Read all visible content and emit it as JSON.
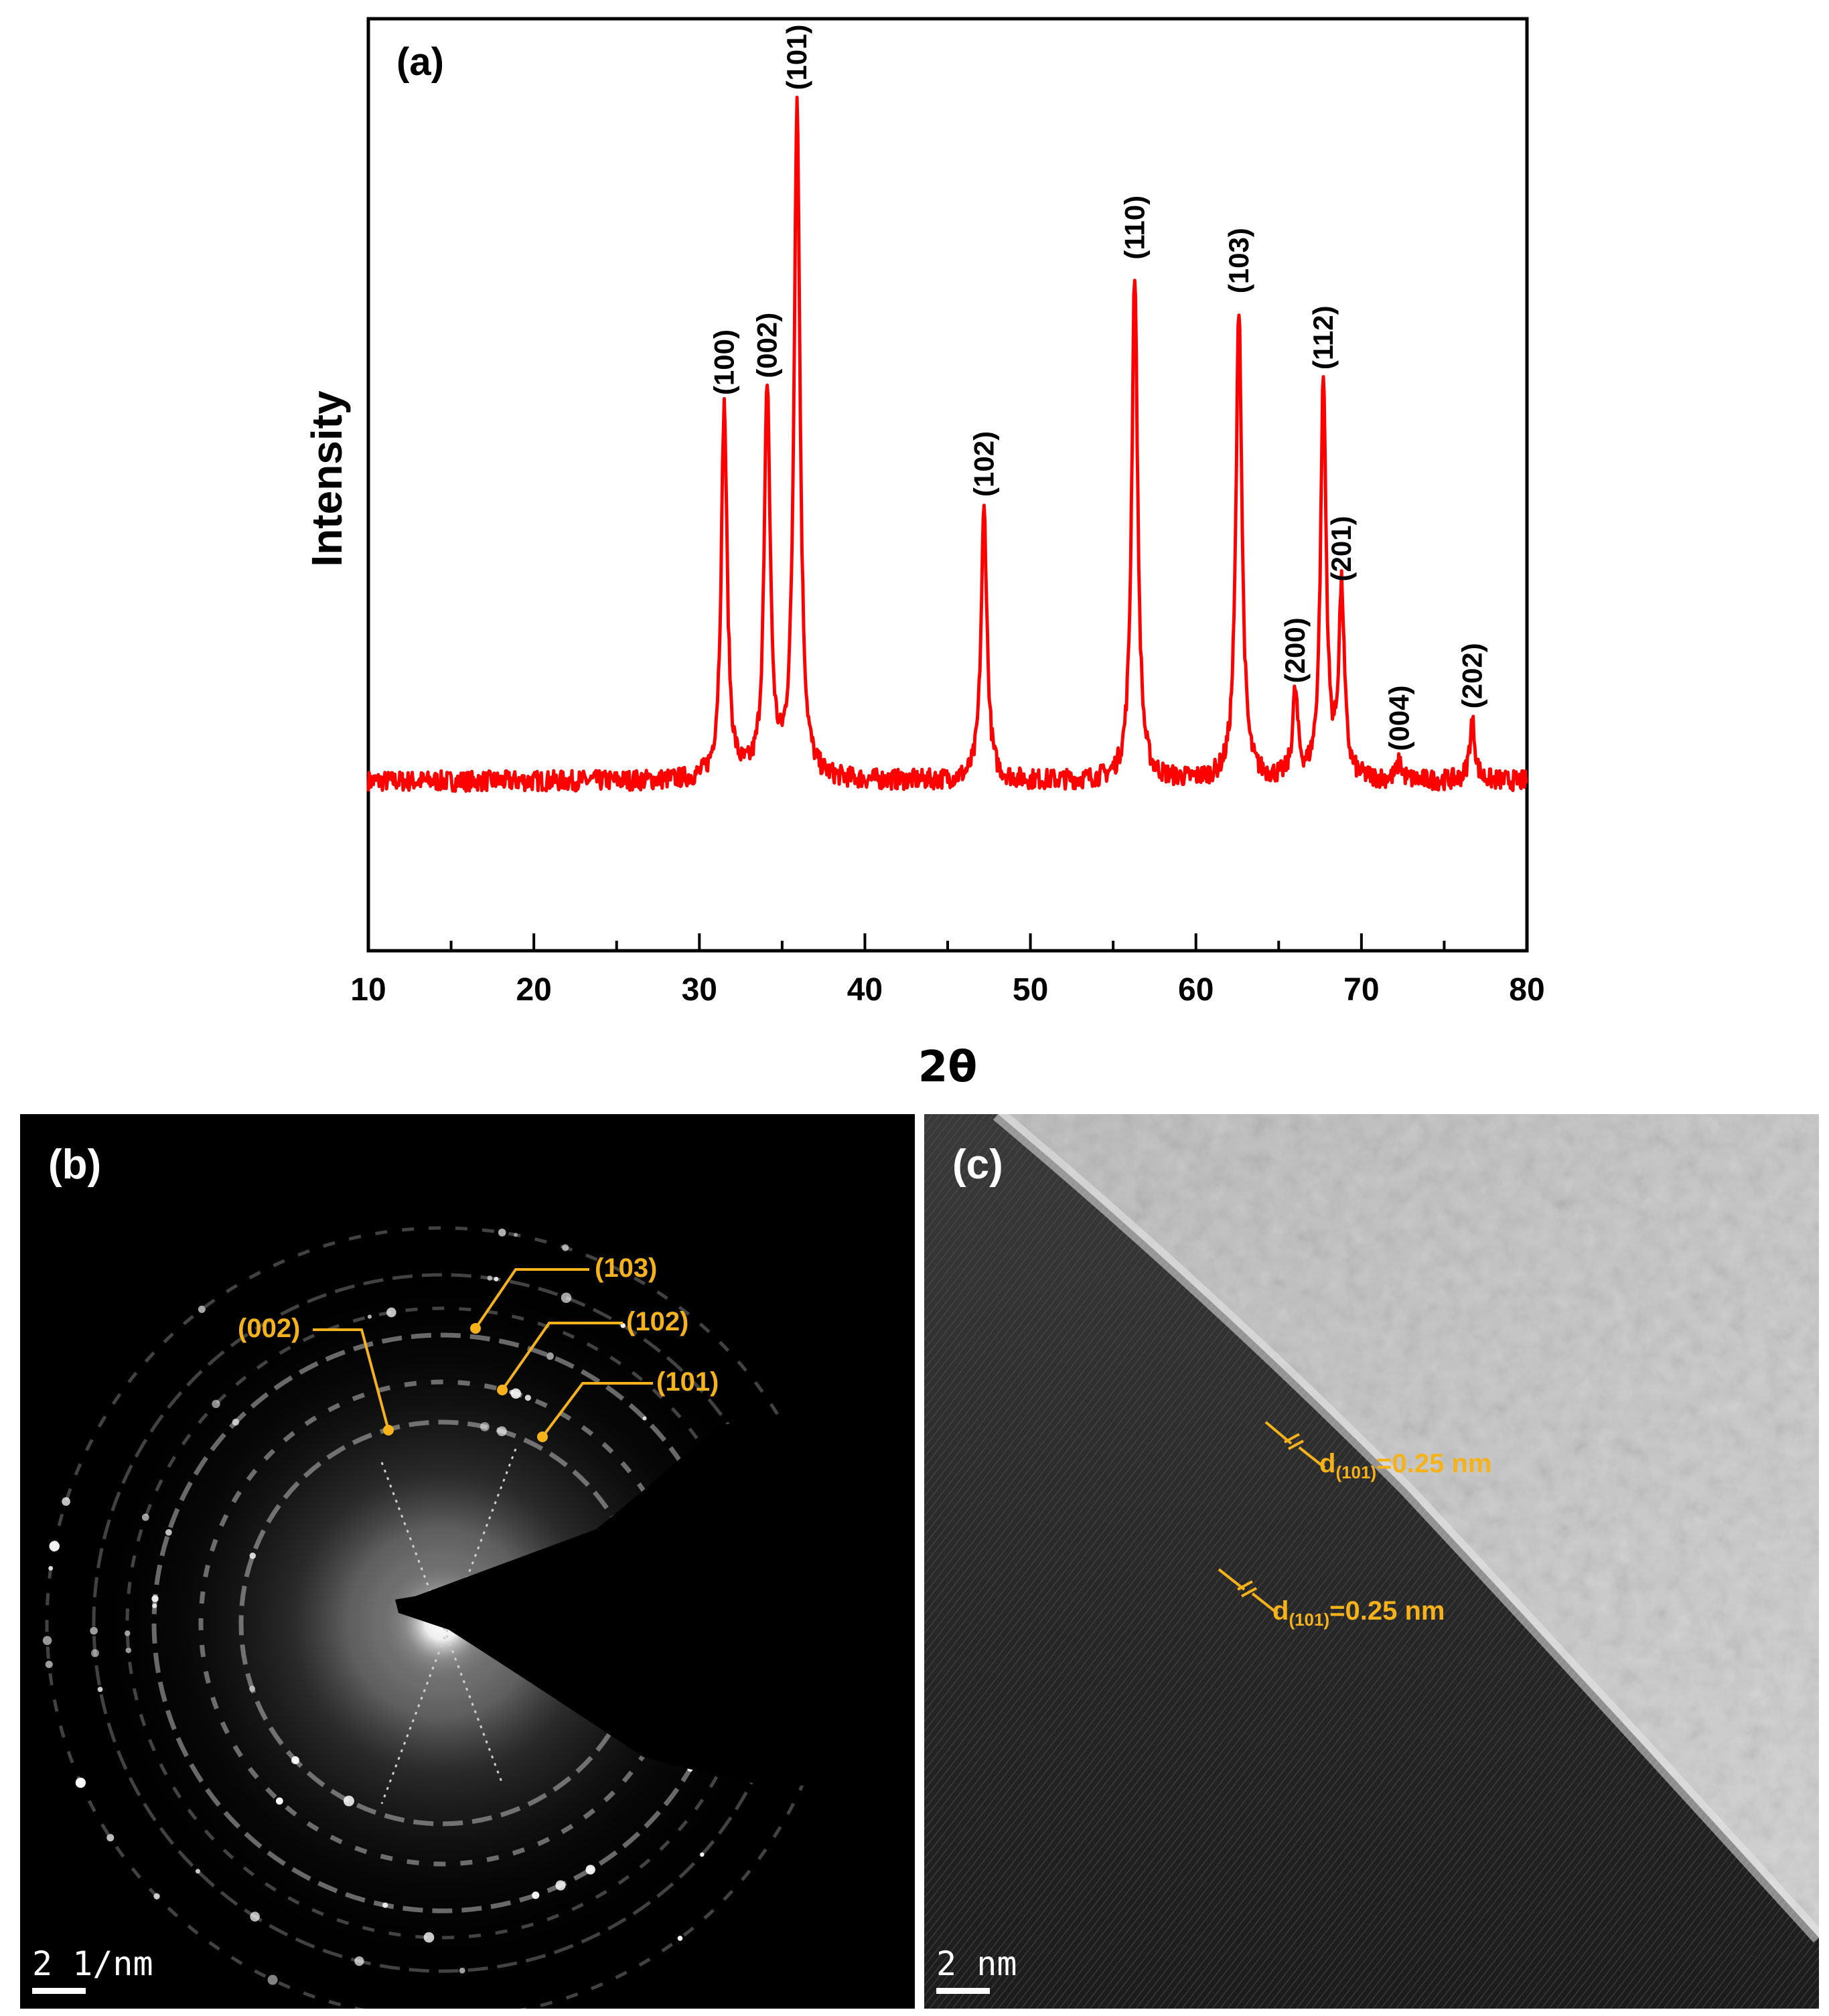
{
  "chart_data": {
    "type": "line",
    "panel_label": "(a)",
    "xlabel": "2θ",
    "ylabel": "Intensity",
    "xlim": [
      10,
      80
    ],
    "ylim": [
      0,
      110
    ],
    "xticks": [
      "10",
      "20",
      "30",
      "40",
      "50",
      "60",
      "70",
      "80"
    ],
    "color": "#ff0000",
    "baseline": 20,
    "peaks": [
      {
        "label": "(100)",
        "x": 31.5,
        "y": 64,
        "width": 0.32
      },
      {
        "label": "(002)",
        "x": 34.1,
        "y": 66,
        "width": 0.32
      },
      {
        "label": "(101)",
        "x": 35.9,
        "y": 100,
        "width": 0.32
      },
      {
        "label": "(102)",
        "x": 47.2,
        "y": 52,
        "width": 0.32
      },
      {
        "label": "(110)",
        "x": 56.3,
        "y": 80,
        "width": 0.32
      },
      {
        "label": "(103)",
        "x": 62.6,
        "y": 76,
        "width": 0.32
      },
      {
        "label": "(200)",
        "x": 66.0,
        "y": 30,
        "width": 0.28
      },
      {
        "label": "(112)",
        "x": 67.7,
        "y": 67,
        "width": 0.3
      },
      {
        "label": "(201)",
        "x": 68.8,
        "y": 42,
        "width": 0.3
      },
      {
        "label": "(004)",
        "x": 72.3,
        "y": 22,
        "width": 0.3
      },
      {
        "label": "(202)",
        "x": 76.7,
        "y": 27,
        "width": 0.3
      }
    ]
  },
  "panel_b": {
    "label": "(b)",
    "scale_value": "2",
    "scale_unit": "1/nm",
    "rings": [
      "(002)",
      "(103)",
      "(102)",
      "(101)"
    ]
  },
  "panel_c": {
    "label": "(c)",
    "scale_value": "2",
    "scale_unit": "nm",
    "spacing_prefix": "d",
    "spacing_sub": "(101)",
    "spacing_value": "=0.25 nm"
  },
  "colors": {
    "curve": "#ff0000",
    "annotation": "#f5b21a"
  }
}
